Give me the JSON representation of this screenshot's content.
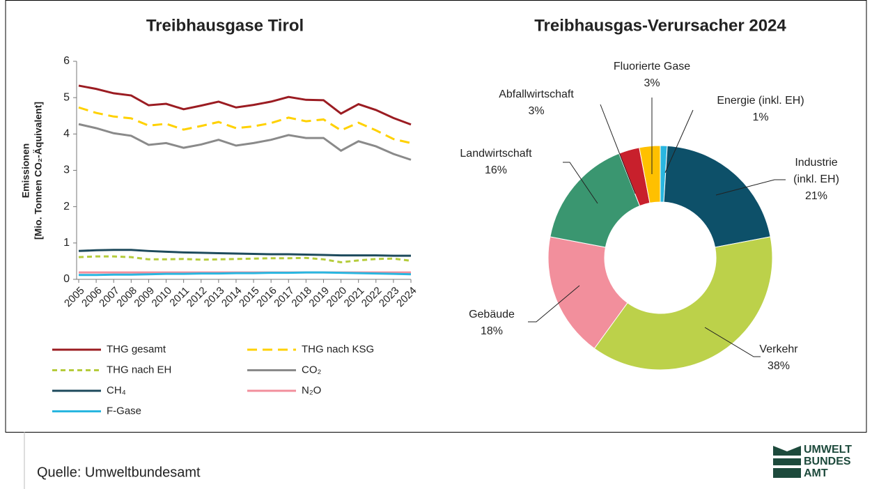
{
  "chart_data": [
    {
      "type": "line",
      "title": "Treibhausgase Tirol",
      "y_label": [
        "Emissionen",
        "[Mio. Tonnen CO₂-Äquivalent]"
      ],
      "categories": [
        "2005",
        "2006",
        "2007",
        "2008",
        "2009",
        "2010",
        "2011",
        "2012",
        "2013",
        "2014",
        "2015",
        "2016",
        "2017",
        "2018",
        "2019",
        "2020",
        "2021",
        "2022",
        "2023",
        "2024"
      ],
      "ylim": [
        0,
        6
      ],
      "yticks": [
        0,
        1,
        2,
        3,
        4,
        5,
        6
      ],
      "series": [
        {
          "name": "THG gesamt",
          "color": "#9b1c22",
          "style": "solid",
          "values": [
            5.33,
            5.24,
            5.12,
            5.06,
            4.79,
            4.83,
            4.68,
            4.78,
            4.89,
            4.73,
            4.8,
            4.89,
            5.02,
            4.94,
            4.93,
            4.56,
            4.82,
            4.66,
            4.44,
            4.26
          ]
        },
        {
          "name": "THG nach KSG",
          "color": "#ffd100",
          "style": "dashed",
          "values": [
            4.73,
            4.58,
            4.48,
            4.43,
            4.23,
            4.28,
            4.12,
            4.22,
            4.33,
            4.16,
            4.21,
            4.3,
            4.45,
            4.35,
            4.4,
            4.1,
            4.31,
            4.1,
            3.86,
            3.75
          ]
        },
        {
          "name": "THG nach EH",
          "color": "#b5cc3c",
          "style": "dotted",
          "values": [
            0.61,
            0.63,
            0.63,
            0.61,
            0.55,
            0.55,
            0.56,
            0.54,
            0.55,
            0.56,
            0.57,
            0.58,
            0.58,
            0.59,
            0.55,
            0.47,
            0.52,
            0.56,
            0.57,
            0.51
          ]
        },
        {
          "name": "CO₂",
          "color": "#8a8a8a",
          "style": "solid",
          "values": [
            4.27,
            4.16,
            4.02,
            3.95,
            3.7,
            3.75,
            3.62,
            3.71,
            3.84,
            3.68,
            3.75,
            3.84,
            3.97,
            3.89,
            3.89,
            3.54,
            3.8,
            3.66,
            3.45,
            3.29
          ]
        },
        {
          "name": "CH₄",
          "color": "#1d4a5c",
          "style": "solid",
          "values": [
            0.78,
            0.8,
            0.81,
            0.81,
            0.78,
            0.76,
            0.74,
            0.73,
            0.72,
            0.71,
            0.7,
            0.69,
            0.69,
            0.68,
            0.67,
            0.66,
            0.66,
            0.66,
            0.65,
            0.65
          ]
        },
        {
          "name": "N₂O",
          "color": "#f28f9c",
          "style": "solid",
          "values": [
            0.19,
            0.19,
            0.19,
            0.19,
            0.19,
            0.19,
            0.19,
            0.19,
            0.19,
            0.19,
            0.19,
            0.19,
            0.19,
            0.19,
            0.19,
            0.19,
            0.19,
            0.19,
            0.19,
            0.19
          ]
        },
        {
          "name": "F-Gase",
          "color": "#29b6e0",
          "style": "solid",
          "values": [
            0.12,
            0.12,
            0.13,
            0.13,
            0.14,
            0.15,
            0.15,
            0.16,
            0.16,
            0.17,
            0.17,
            0.18,
            0.18,
            0.19,
            0.19,
            0.18,
            0.17,
            0.16,
            0.15,
            0.14
          ]
        }
      ]
    },
    {
      "type": "donut",
      "title": "Treibhausgas-Verursacher 2024",
      "categories": [
        "Energie (inkl. EH)",
        "Industrie (inkl. EH)",
        "Verkehr",
        "Gebäude",
        "Landwirtschaft",
        "Abfallwirtschaft",
        "Fluorierte Gase"
      ],
      "values": [
        1,
        21,
        38,
        18,
        16,
        3,
        3
      ],
      "value_labels": [
        "1%",
        "21%",
        "38%",
        "18%",
        "16%",
        "3%",
        "3%"
      ],
      "colors": [
        "#29b6e0",
        "#0d5069",
        "#bcd14a",
        "#f28f9c",
        "#3a9670",
        "#c8202c",
        "#ffc000"
      ]
    }
  ],
  "source": "Quelle:  Umweltbundesamt",
  "logo": [
    "UMWELT",
    "BUNDES",
    "AMT"
  ]
}
